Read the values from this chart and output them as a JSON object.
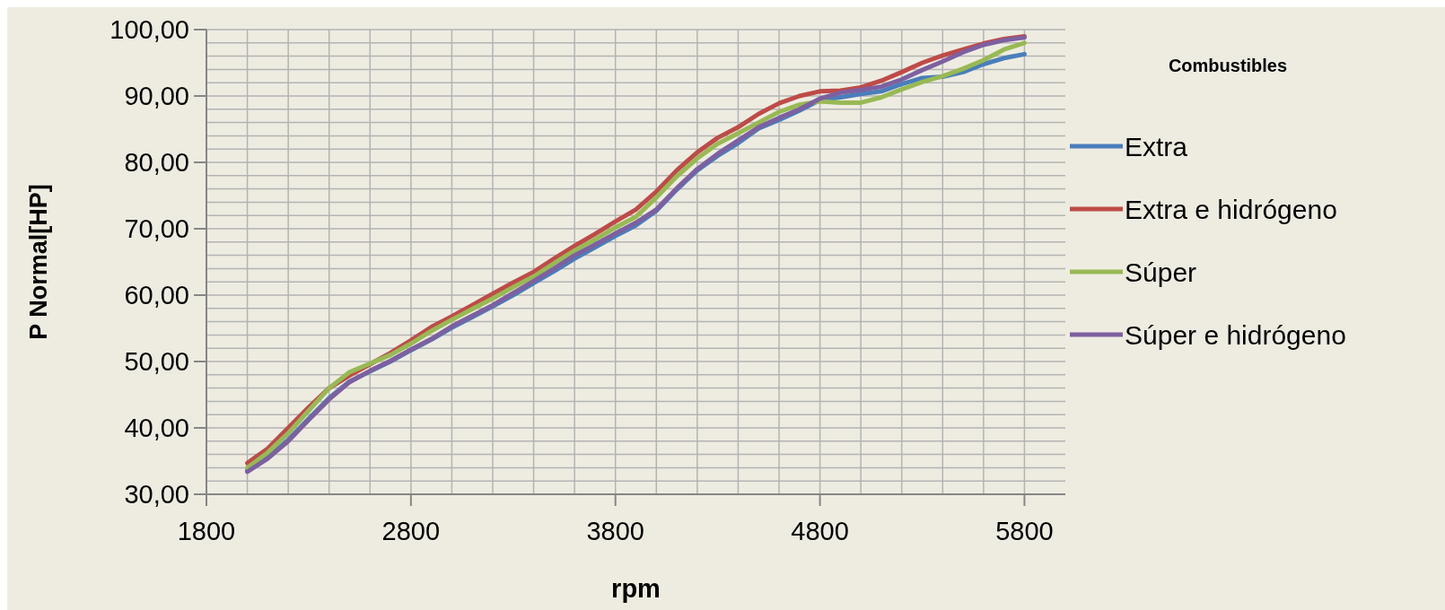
{
  "chart_data": {
    "type": "line",
    "xlabel": "rpm",
    "ylabel": "P Normal[HP]",
    "legend_title": "Combustibles",
    "legend": "right",
    "grid": true,
    "marker": "none",
    "line_style": "solid",
    "x": [
      2000,
      2100,
      2200,
      2300,
      2400,
      2500,
      2600,
      2700,
      2800,
      2900,
      3000,
      3100,
      3200,
      3300,
      3400,
      3500,
      3600,
      3700,
      3800,
      3900,
      4000,
      4100,
      4200,
      4300,
      4400,
      4500,
      4600,
      4700,
      4800,
      4900,
      5000,
      5100,
      5200,
      5300,
      5400,
      5500,
      5600,
      5700,
      5800
    ],
    "xlim": [
      1800,
      6000
    ],
    "xticks": [
      1800,
      {
        "value": 2000,
        "label": null
      },
      {
        "value": 2200,
        "label": null
      },
      {
        "value": 2400,
        "label": null
      },
      {
        "value": 2600,
        "label": null
      },
      2800,
      {
        "value": 3000,
        "label": null
      },
      {
        "value": 3200,
        "label": null
      },
      {
        "value": 3400,
        "label": null
      },
      {
        "value": 3600,
        "label": null
      },
      3800,
      {
        "value": 4000,
        "label": null
      },
      {
        "value": 4200,
        "label": null
      },
      {
        "value": 4400,
        "label": null
      },
      {
        "value": 4600,
        "label": null
      },
      4800,
      {
        "value": 5000,
        "label": null
      },
      {
        "value": 5200,
        "label": null
      },
      {
        "value": 5400,
        "label": null
      },
      {
        "value": 5600,
        "label": null
      },
      5800
    ],
    "ylim": [
      30,
      100
    ],
    "yticks": [
      {
        "value": 30,
        "label": "30,00"
      },
      {
        "value": 32,
        "label": null
      },
      {
        "value": 34,
        "label": null
      },
      {
        "value": 36,
        "label": null
      },
      {
        "value": 38,
        "label": null
      },
      {
        "value": 40,
        "label": "40,00"
      },
      {
        "value": 42,
        "label": null
      },
      {
        "value": 44,
        "label": null
      },
      {
        "value": 46,
        "label": null
      },
      {
        "value": 48,
        "label": null
      },
      {
        "value": 50,
        "label": "50,00"
      },
      {
        "value": 52,
        "label": null
      },
      {
        "value": 54,
        "label": null
      },
      {
        "value": 56,
        "label": null
      },
      {
        "value": 58,
        "label": null
      },
      {
        "value": 60,
        "label": "60,00"
      },
      {
        "value": 62,
        "label": null
      },
      {
        "value": 64,
        "label": null
      },
      {
        "value": 66,
        "label": null
      },
      {
        "value": 68,
        "label": null
      },
      {
        "value": 70,
        "label": "70,00"
      },
      {
        "value": 72,
        "label": null
      },
      {
        "value": 74,
        "label": null
      },
      {
        "value": 76,
        "label": null
      },
      {
        "value": 78,
        "label": null
      },
      {
        "value": 80,
        "label": "80,00"
      },
      {
        "value": 82,
        "label": null
      },
      {
        "value": 84,
        "label": null
      },
      {
        "value": 86,
        "label": null
      },
      {
        "value": 88,
        "label": null
      },
      {
        "value": 90,
        "label": "90,00"
      },
      {
        "value": 92,
        "label": null
      },
      {
        "value": 94,
        "label": null
      },
      {
        "value": 96,
        "label": null
      },
      {
        "value": 98,
        "label": null
      },
      {
        "value": 100,
        "label": "100,00"
      }
    ],
    "series": [
      {
        "name": "Extra",
        "color": "#4a7ebb",
        "values": [
          33.6,
          35.6,
          38.2,
          41.4,
          44.5,
          47.0,
          48.5,
          50.0,
          51.7,
          53.3,
          55.1,
          56.7,
          58.3,
          60.0,
          61.8,
          63.6,
          65.5,
          67.2,
          68.9,
          70.5,
          72.7,
          75.9,
          78.8,
          81.0,
          82.9,
          85.1,
          86.4,
          87.8,
          89.4,
          89.8,
          90.3,
          90.7,
          91.8,
          92.7,
          92.9,
          93.6,
          94.8,
          95.7,
          96.3
        ]
      },
      {
        "name": "Extra e hidrógeno",
        "color": "#be4b48",
        "values": [
          34.7,
          36.9,
          40.0,
          43.1,
          46.0,
          47.9,
          49.6,
          51.3,
          53.2,
          55.2,
          56.8,
          58.5,
          60.2,
          61.9,
          63.5,
          65.5,
          67.4,
          69.2,
          71.1,
          72.9,
          75.6,
          78.8,
          81.5,
          83.7,
          85.3,
          87.3,
          88.9,
          90.0,
          90.7,
          90.8,
          91.3,
          92.3,
          93.6,
          95.0,
          96.1,
          97.0,
          97.9,
          98.6,
          99.0
        ]
      },
      {
        "name": "Súper",
        "color": "#98b954",
        "values": [
          34.0,
          36.3,
          39.2,
          42.6,
          46.0,
          48.4,
          49.7,
          51.0,
          52.7,
          54.6,
          56.3,
          57.9,
          59.5,
          61.2,
          62.8,
          64.8,
          66.7,
          68.4,
          70.2,
          71.8,
          74.7,
          77.9,
          80.6,
          82.8,
          84.4,
          86.0,
          87.6,
          88.7,
          89.2,
          89.0,
          89.0,
          89.8,
          91.0,
          92.1,
          93.0,
          94.1,
          95.4,
          97.0,
          98.0
        ]
      },
      {
        "name": "Súper e hidrógeno",
        "color": "#7d60a0",
        "values": [
          33.4,
          35.4,
          38.0,
          41.2,
          44.3,
          46.9,
          48.6,
          50.1,
          51.8,
          53.4,
          55.3,
          56.9,
          58.5,
          60.3,
          62.1,
          64.0,
          66.0,
          67.6,
          69.3,
          70.9,
          72.9,
          76.1,
          79.0,
          81.3,
          83.3,
          85.3,
          86.7,
          88.0,
          89.6,
          90.5,
          90.9,
          91.4,
          92.5,
          93.9,
          95.2,
          96.6,
          97.7,
          98.4,
          98.8
        ]
      }
    ]
  }
}
